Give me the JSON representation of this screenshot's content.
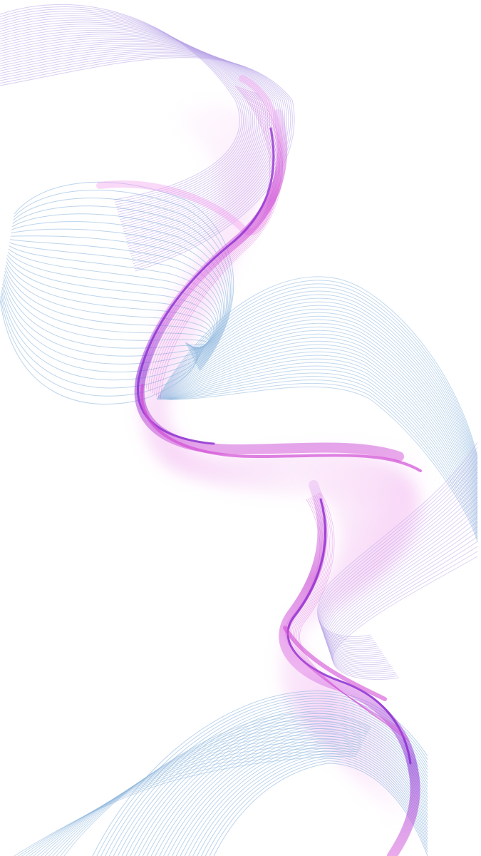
{
  "artwork": {
    "description_type": "abstract-wave-wallpaper",
    "colors": {
      "background": "#ffffff",
      "line_blue": "#8fb8de",
      "line_lavender": "#b9a6e8",
      "ribbon_magenta": "#d24fd6",
      "ribbon_violet": "#8a2ed0",
      "ribbon_pink": "#f3a8f0"
    }
  }
}
